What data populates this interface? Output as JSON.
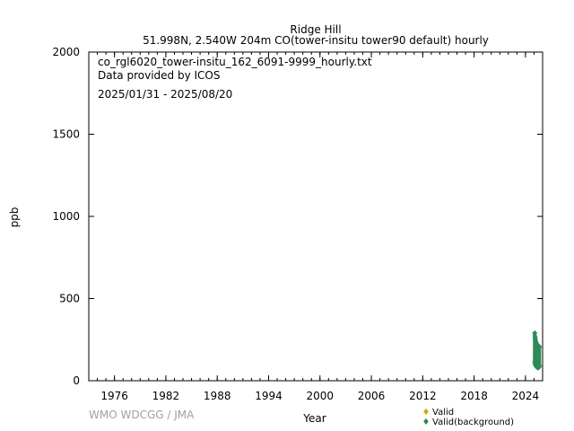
{
  "header": {
    "station": "Ridge Hill",
    "subtitle": "51.998N, 2.540W 204m    CO(tower-insitu tower90 default) hourly"
  },
  "info": {
    "filename": "co_rgl6020_tower-insitu_162_6091-9999_hourly.txt",
    "provider": "Data provided by ICOS",
    "period": "2025/01/31 - 2025/08/20"
  },
  "watermark": "WMO WDCGG / JMA",
  "chart_data": {
    "type": "scatter",
    "xlabel": "Year",
    "ylabel": "ppb",
    "xlim": [
      1973,
      2026
    ],
    "ylim": [
      0,
      2000
    ],
    "x_ticks": [
      1976,
      1982,
      1988,
      1994,
      2000,
      2006,
      2012,
      2018,
      2024
    ],
    "y_ticks": [
      0,
      500,
      1000,
      1500,
      2000
    ],
    "legend_position": "bottom-right",
    "series": [
      {
        "name": "Valid",
        "color": "#d4aa00",
        "marker": "diamond",
        "points": []
      },
      {
        "name": "Valid(background)",
        "color": "#2e8b57",
        "marker": "diamond",
        "ranges": [
          {
            "x": 2025.08,
            "min": 115,
            "max": 290
          },
          {
            "x": 2025.12,
            "min": 105,
            "max": 270
          },
          {
            "x": 2025.17,
            "min": 95,
            "max": 255
          },
          {
            "x": 2025.21,
            "min": 100,
            "max": 240
          },
          {
            "x": 2025.25,
            "min": 90,
            "max": 230
          },
          {
            "x": 2025.29,
            "min": 85,
            "max": 225
          },
          {
            "x": 2025.33,
            "min": 85,
            "max": 220
          },
          {
            "x": 2025.38,
            "min": 80,
            "max": 210
          },
          {
            "x": 2025.42,
            "min": 80,
            "max": 205
          },
          {
            "x": 2025.46,
            "min": 80,
            "max": 200
          },
          {
            "x": 2025.5,
            "min": 85,
            "max": 195
          },
          {
            "x": 2025.54,
            "min": 80,
            "max": 200
          },
          {
            "x": 2025.58,
            "min": 85,
            "max": 210
          },
          {
            "x": 2025.62,
            "min": 90,
            "max": 205
          }
        ]
      }
    ]
  }
}
